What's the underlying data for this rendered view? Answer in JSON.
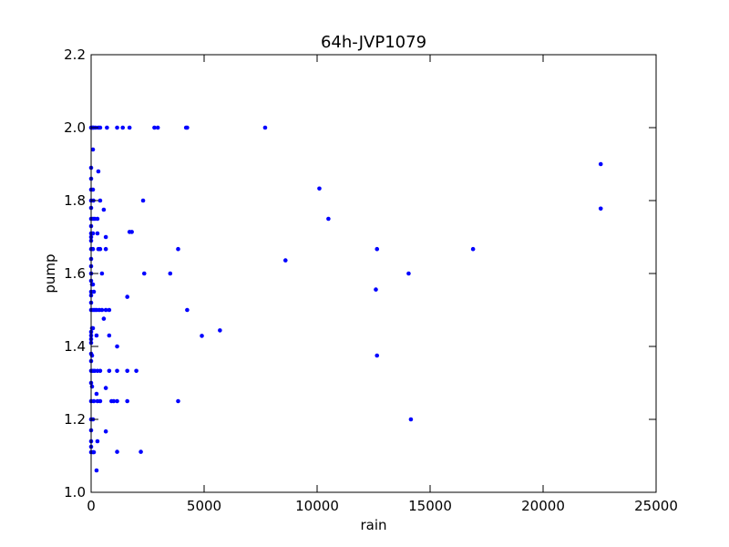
{
  "chart_data": {
    "type": "scatter",
    "title": "64h-JVP1079",
    "xlabel": "rain",
    "ylabel": "pump",
    "xlim": [
      0,
      25000
    ],
    "ylim": [
      1.0,
      2.2
    ],
    "xticks": [
      "0",
      "5000",
      "10000",
      "15000",
      "20000",
      "25000"
    ],
    "yticks": [
      "1.0",
      "1.2",
      "1.4",
      "1.6",
      "1.8",
      "2.0",
      "2.2"
    ],
    "grid": false,
    "marker_color": "#0000ff",
    "series": [
      {
        "points": [
          [
            0,
            2.0
          ],
          [
            40,
            2.0
          ],
          [
            80,
            2.0
          ],
          [
            120,
            2.0
          ],
          [
            200,
            2.0
          ],
          [
            320,
            2.0
          ],
          [
            400,
            2.0
          ],
          [
            700,
            2.0
          ],
          [
            1150,
            2.0
          ],
          [
            1400,
            2.0
          ],
          [
            1700,
            2.0
          ],
          [
            2800,
            2.0
          ],
          [
            2950,
            2.0
          ],
          [
            4200,
            2.0
          ],
          [
            4250,
            2.0
          ],
          [
            7700,
            2.0
          ],
          [
            80,
            1.94
          ],
          [
            0,
            1.89
          ],
          [
            320,
            1.88
          ],
          [
            0,
            1.86
          ],
          [
            0,
            1.83
          ],
          [
            80,
            1.83
          ],
          [
            0,
            1.8
          ],
          [
            100,
            1.8
          ],
          [
            400,
            1.8
          ],
          [
            2300,
            1.8
          ],
          [
            0,
            1.78
          ],
          [
            560,
            1.775
          ],
          [
            0,
            1.75
          ],
          [
            80,
            1.75
          ],
          [
            160,
            1.75
          ],
          [
            280,
            1.75
          ],
          [
            0,
            1.73
          ],
          [
            0,
            1.71
          ],
          [
            80,
            1.71
          ],
          [
            280,
            1.71
          ],
          [
            1700,
            1.714
          ],
          [
            1800,
            1.714
          ],
          [
            0,
            1.7
          ],
          [
            650,
            1.7
          ],
          [
            0,
            1.69
          ],
          [
            0,
            1.667
          ],
          [
            80,
            1.667
          ],
          [
            320,
            1.667
          ],
          [
            400,
            1.667
          ],
          [
            650,
            1.667
          ],
          [
            3850,
            1.667
          ],
          [
            0,
            1.64
          ],
          [
            0,
            1.62
          ],
          [
            0,
            1.6
          ],
          [
            480,
            1.6
          ],
          [
            2350,
            1.6
          ],
          [
            3500,
            1.6
          ],
          [
            0,
            1.58
          ],
          [
            40,
            1.57
          ],
          [
            80,
            1.57
          ],
          [
            0,
            1.55
          ],
          [
            120,
            1.55
          ],
          [
            0,
            1.54
          ],
          [
            1600,
            1.536
          ],
          [
            0,
            1.52
          ],
          [
            0,
            1.5
          ],
          [
            80,
            1.5
          ],
          [
            160,
            1.5
          ],
          [
            240,
            1.5
          ],
          [
            360,
            1.5
          ],
          [
            480,
            1.5
          ],
          [
            650,
            1.5
          ],
          [
            800,
            1.5
          ],
          [
            4250,
            1.5
          ],
          [
            560,
            1.476
          ],
          [
            40,
            1.45
          ],
          [
            80,
            1.45
          ],
          [
            0,
            1.44
          ],
          [
            0,
            1.43
          ],
          [
            240,
            1.43
          ],
          [
            800,
            1.43
          ],
          [
            0,
            1.42
          ],
          [
            0,
            1.41
          ],
          [
            1150,
            1.4
          ],
          [
            0,
            1.38
          ],
          [
            40,
            1.375
          ],
          [
            0,
            1.36
          ],
          [
            0,
            1.333
          ],
          [
            80,
            1.333
          ],
          [
            160,
            1.333
          ],
          [
            280,
            1.333
          ],
          [
            400,
            1.333
          ],
          [
            800,
            1.333
          ],
          [
            1150,
            1.333
          ],
          [
            1600,
            1.333
          ],
          [
            2000,
            1.333
          ],
          [
            0,
            1.3
          ],
          [
            40,
            1.29
          ],
          [
            650,
            1.286
          ],
          [
            240,
            1.27
          ],
          [
            0,
            1.25
          ],
          [
            120,
            1.25
          ],
          [
            280,
            1.25
          ],
          [
            400,
            1.25
          ],
          [
            900,
            1.25
          ],
          [
            1000,
            1.25
          ],
          [
            1150,
            1.25
          ],
          [
            1600,
            1.25
          ],
          [
            3850,
            1.25
          ],
          [
            0,
            1.2
          ],
          [
            80,
            1.2
          ],
          [
            0,
            1.17
          ],
          [
            650,
            1.167
          ],
          [
            0,
            1.14
          ],
          [
            280,
            1.14
          ],
          [
            0,
            1.125
          ],
          [
            0,
            1.11
          ],
          [
            80,
            1.11
          ],
          [
            120,
            1.11
          ],
          [
            1150,
            1.111
          ],
          [
            2200,
            1.111
          ],
          [
            240,
            1.06
          ],
          [
            4900,
            1.429
          ],
          [
            5700,
            1.444
          ],
          [
            8600,
            1.636
          ],
          [
            10100,
            1.833
          ],
          [
            10500,
            1.75
          ],
          [
            12650,
            1.667
          ],
          [
            12600,
            1.556
          ],
          [
            12650,
            1.375
          ],
          [
            14050,
            1.6
          ],
          [
            14150,
            1.2
          ],
          [
            16900,
            1.667
          ],
          [
            22550,
            1.9
          ],
          [
            22550,
            1.778
          ]
        ]
      }
    ]
  }
}
